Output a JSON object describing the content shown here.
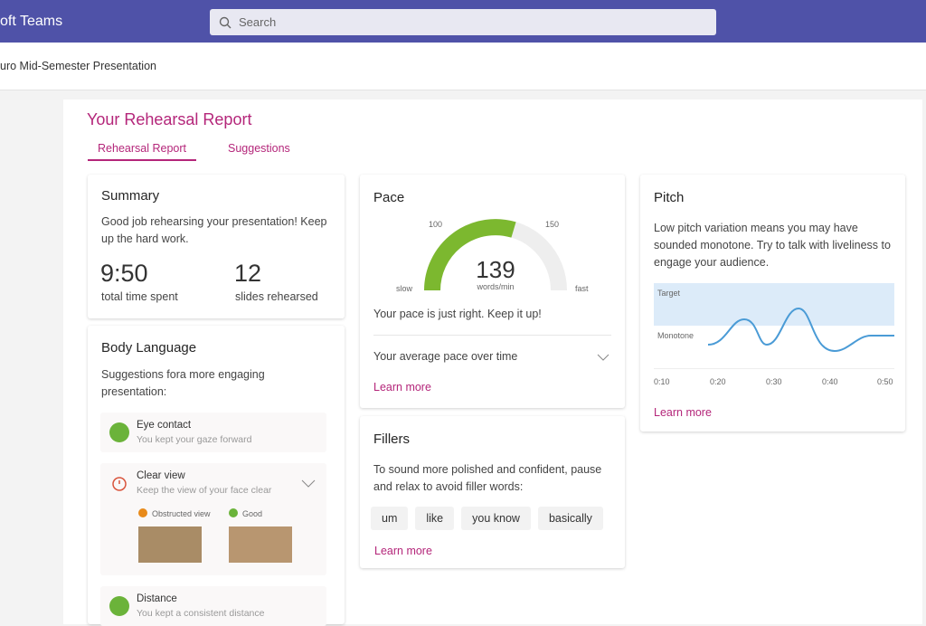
{
  "header": {
    "app": "oft Teams",
    "search": "Search"
  },
  "breadcrumb": "uro Mid-Semester Presentation",
  "report": {
    "title": "Your Rehearsal Report",
    "tabs": [
      "Rehearsal Report",
      "Suggestions"
    ]
  },
  "summary": {
    "title": "Summary",
    "text": "Good job rehearsing your presentation! Keep up the hard work.",
    "stats": [
      {
        "value": "9:50",
        "label": "total time spent"
      },
      {
        "value": "12",
        "label": "slides rehearsed"
      }
    ]
  },
  "body_language": {
    "title": "Body Language",
    "intro": "Suggestions fora more engaging presentation:",
    "items": [
      {
        "title": "Eye contact",
        "text": "You kept your gaze forward"
      },
      {
        "title": "Clear view",
        "text": "Keep the view of your face clear"
      },
      {
        "title": "Distance",
        "text": "You kept a consistent distance"
      }
    ],
    "legend": [
      "Obstructed view",
      "Good"
    ]
  },
  "pace": {
    "title": "Pace",
    "value": "139",
    "unit": "words/min",
    "scale_labels": [
      "slow",
      "100",
      "150",
      "fast"
    ],
    "message": "Your pace is just right. Keep it up!",
    "over_time": "Your average pace over time",
    "link": "Learn more"
  },
  "fillers": {
    "title": "Fillers",
    "text": "To sound more polished and confident, pause and relax to avoid filler words:",
    "words": [
      "um",
      "like",
      "you know",
      "basically"
    ],
    "link": "Learn more"
  },
  "pitch": {
    "title": "Pitch",
    "text": "Low pitch variation means you may have sounded monotone. Try to talk with liveliness to engage your audience.",
    "bands": [
      "Target",
      "Monotone"
    ],
    "times": [
      "0:10",
      "0:20",
      "0:30",
      "0:40",
      "0:50"
    ],
    "link": "Learn more"
  }
}
